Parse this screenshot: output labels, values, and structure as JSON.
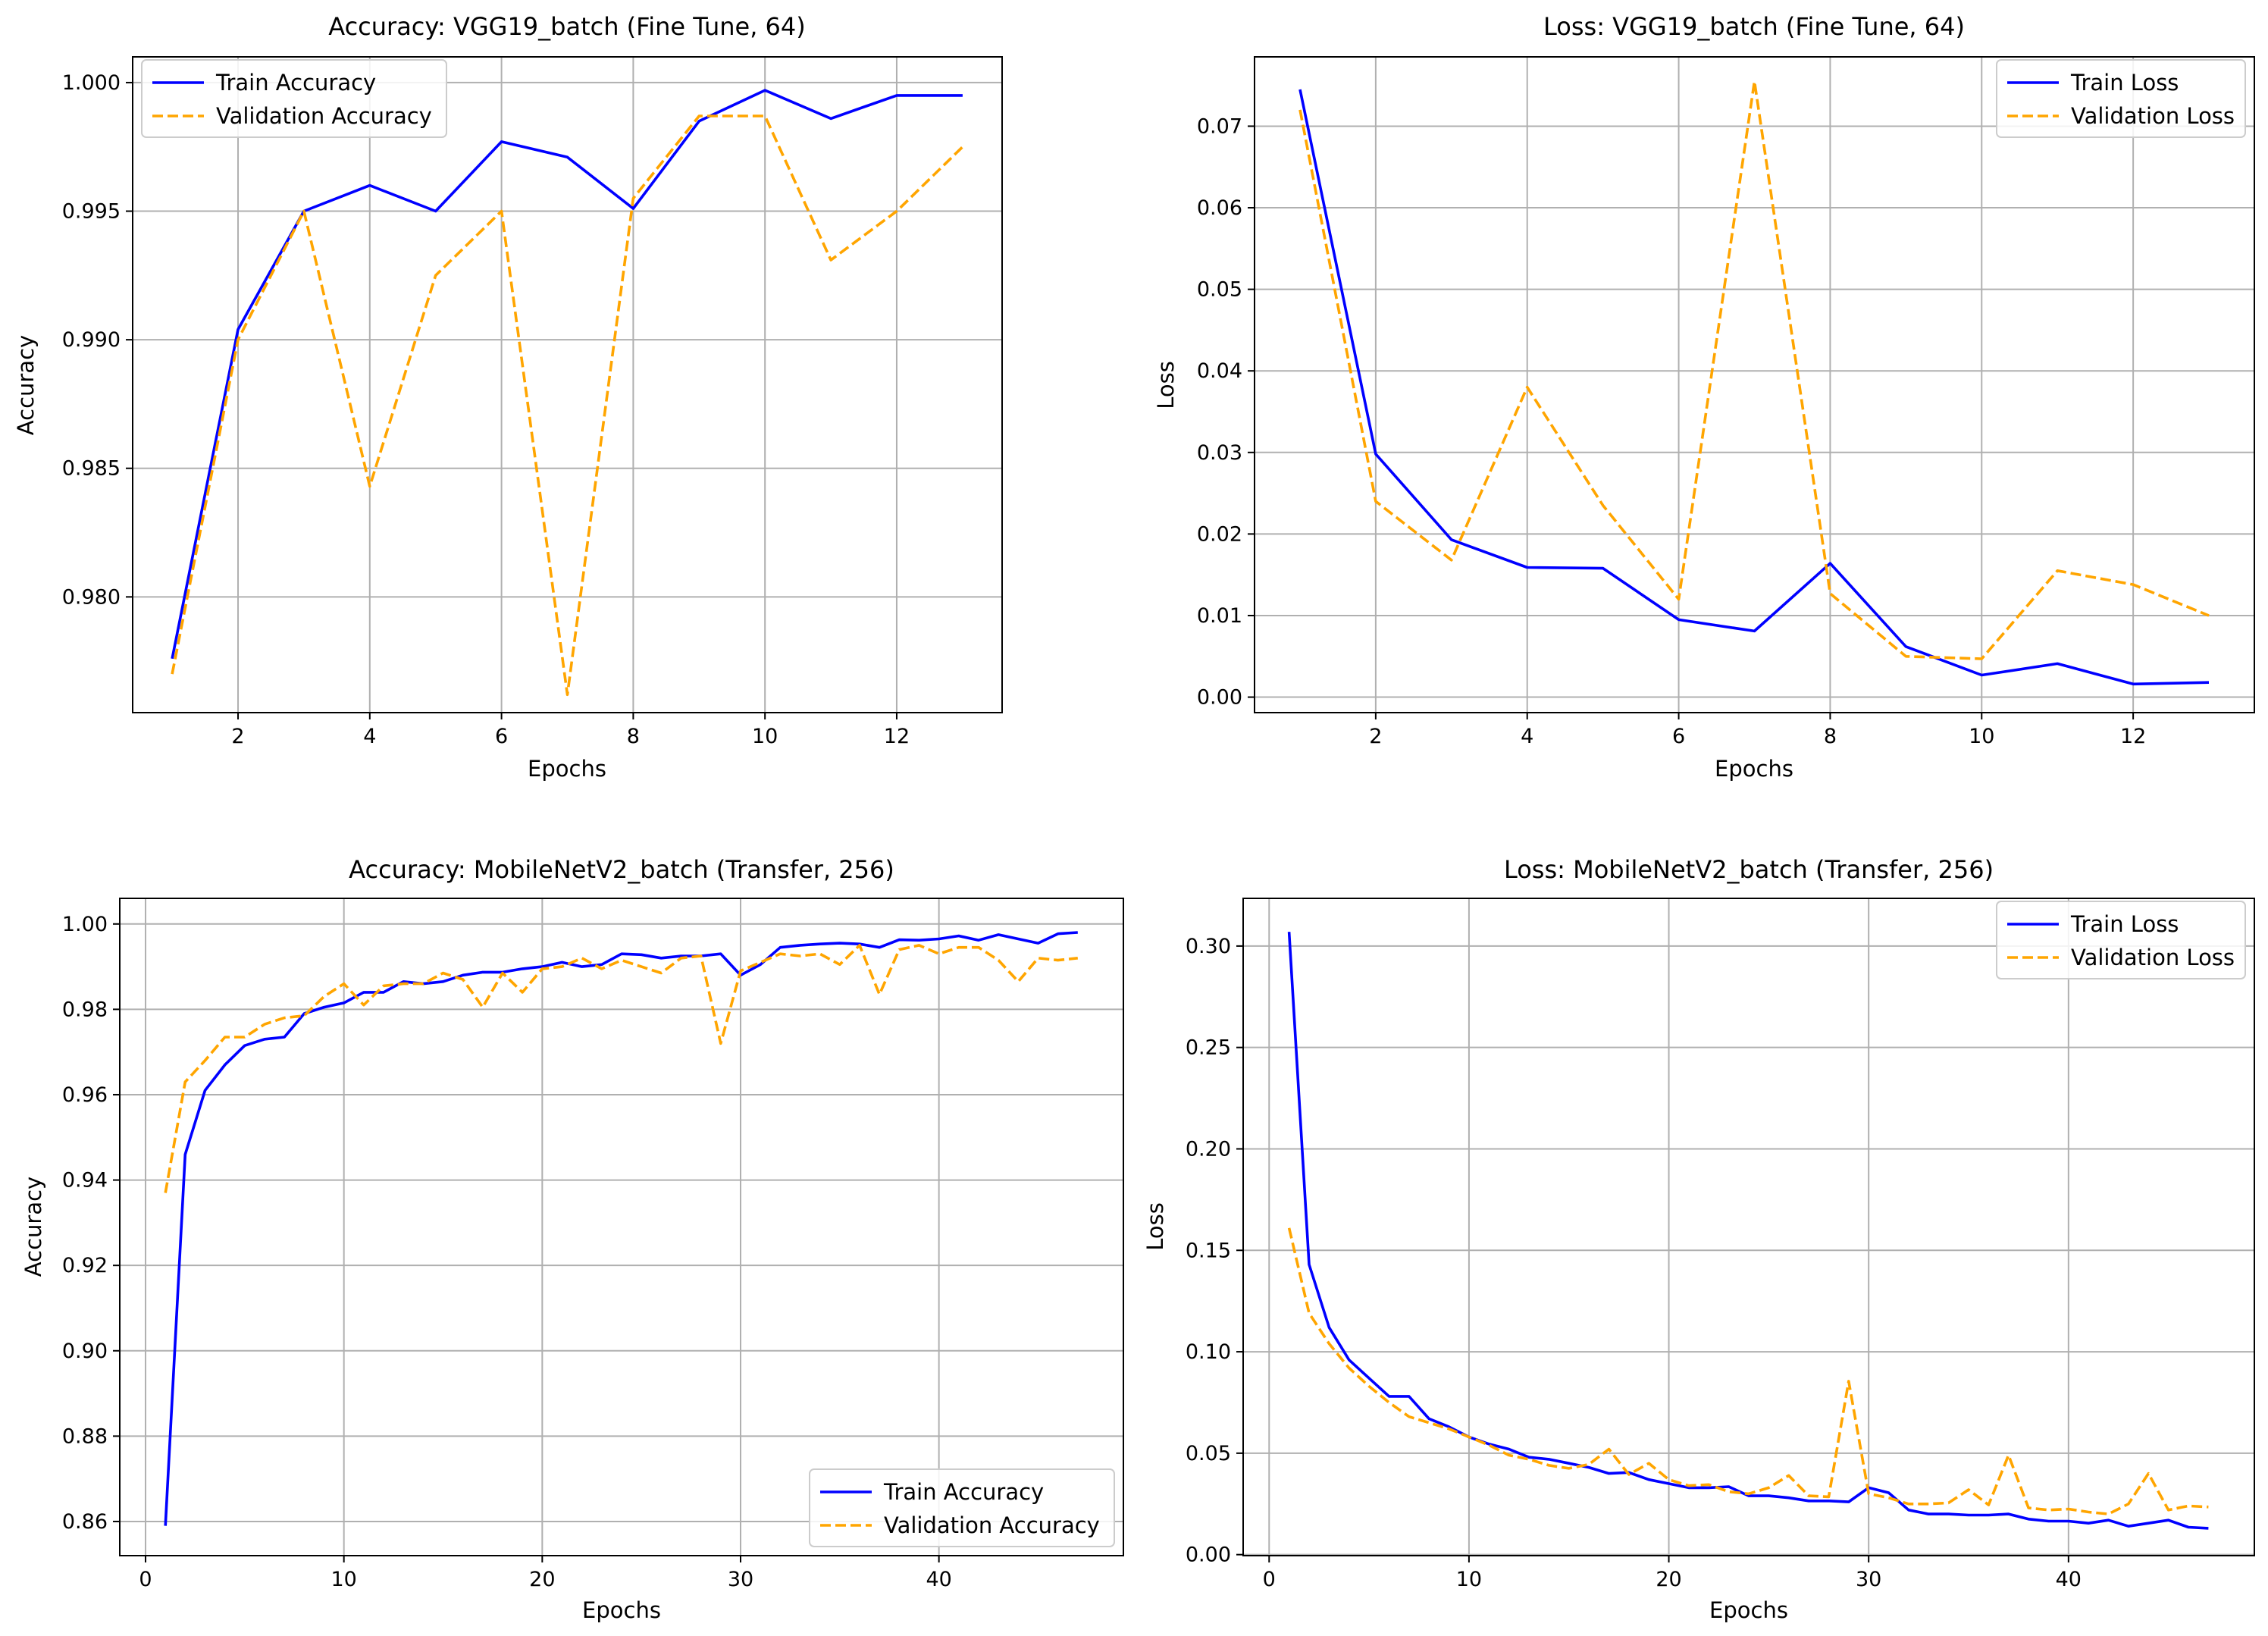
{
  "chart_data": [
    {
      "type": "line",
      "title": "Accuracy: VGG19_batch (Fine Tune, 64)",
      "xlabel": "Epochs",
      "ylabel": "Accuracy",
      "xlim": [
        0.4,
        13.6
      ],
      "ylim": [
        0.9755,
        1.001
      ],
      "xticks": [
        2,
        4,
        6,
        8,
        10,
        12
      ],
      "xtick_labels": [
        "2",
        "4",
        "6",
        "8",
        "10",
        "12"
      ],
      "yticks": [
        0.98,
        0.985,
        0.99,
        0.995,
        1.0
      ],
      "ytick_labels": [
        "0.980",
        "0.985",
        "0.990",
        "0.995",
        "1.000"
      ],
      "grid": true,
      "legend_loc": "upper-left",
      "x": [
        1,
        2,
        3,
        4,
        5,
        6,
        7,
        8,
        9,
        10,
        11,
        12,
        13
      ],
      "series": [
        {
          "name": "Train Accuracy",
          "color": "#0000ff",
          "style": "solid",
          "values": [
            0.9776,
            0.9904,
            0.995,
            0.996,
            0.995,
            0.9977,
            0.9971,
            0.9951,
            0.9985,
            0.9997,
            0.9986,
            0.9995,
            0.9995
          ]
        },
        {
          "name": "Validation Accuracy",
          "color": "#ffa500",
          "style": "dashed",
          "values": [
            0.977,
            0.99,
            0.995,
            0.9843,
            0.9925,
            0.995,
            0.9762,
            0.9955,
            0.9987,
            0.9987,
            0.9931,
            0.995,
            0.9975
          ]
        }
      ]
    },
    {
      "type": "line",
      "title": "Loss: VGG19_batch (Fine Tune, 64)",
      "xlabel": "Epochs",
      "ylabel": "Loss",
      "xlim": [
        0.4,
        13.6
      ],
      "ylim": [
        -0.0019,
        0.0785
      ],
      "xticks": [
        2,
        4,
        6,
        8,
        10,
        12
      ],
      "xtick_labels": [
        "2",
        "4",
        "6",
        "8",
        "10",
        "12"
      ],
      "yticks": [
        0.0,
        0.01,
        0.02,
        0.03,
        0.04,
        0.05,
        0.06,
        0.07
      ],
      "ytick_labels": [
        "0.00",
        "0.01",
        "0.02",
        "0.03",
        "0.04",
        "0.05",
        "0.06",
        "0.07"
      ],
      "grid": true,
      "legend_loc": "upper-right",
      "x": [
        1,
        2,
        3,
        4,
        5,
        6,
        7,
        8,
        9,
        10,
        11,
        12,
        13
      ],
      "series": [
        {
          "name": "Train Loss",
          "color": "#0000ff",
          "style": "solid",
          "values": [
            0.0745,
            0.0298,
            0.0193,
            0.0159,
            0.0158,
            0.0095,
            0.0081,
            0.0164,
            0.0062,
            0.0027,
            0.0041,
            0.0016,
            0.0018
          ]
        },
        {
          "name": "Validation Loss",
          "color": "#ffa500",
          "style": "dashed",
          "values": [
            0.072,
            0.024,
            0.0168,
            0.038,
            0.0235,
            0.012,
            0.0755,
            0.0127,
            0.005,
            0.0047,
            0.0155,
            0.0138,
            0.01
          ]
        }
      ]
    },
    {
      "type": "line",
      "title": "Accuracy: MobileNetV2_batch (Transfer, 256)",
      "xlabel": "Epochs",
      "ylabel": "Accuracy",
      "xlim": [
        -1.3,
        49.3
      ],
      "ylim": [
        0.852,
        1.006
      ],
      "xticks": [
        0,
        10,
        20,
        30,
        40
      ],
      "xtick_labels": [
        "0",
        "10",
        "20",
        "30",
        "40"
      ],
      "yticks": [
        0.86,
        0.88,
        0.9,
        0.92,
        0.94,
        0.96,
        0.98,
        1.0
      ],
      "ytick_labels": [
        "0.86",
        "0.88",
        "0.90",
        "0.92",
        "0.94",
        "0.96",
        "0.98",
        "1.00"
      ],
      "grid": true,
      "legend_loc": "lower-right",
      "x": [
        1,
        2,
        3,
        4,
        5,
        6,
        7,
        8,
        9,
        10,
        11,
        12,
        13,
        14,
        15,
        16,
        17,
        18,
        19,
        20,
        21,
        22,
        23,
        24,
        25,
        26,
        27,
        28,
        29,
        30,
        31,
        32,
        33,
        34,
        35,
        36,
        37,
        38,
        39,
        40,
        41,
        42,
        43,
        44,
        45,
        46,
        47
      ],
      "series": [
        {
          "name": "Train Accuracy",
          "color": "#0000ff",
          "style": "solid",
          "values": [
            0.859,
            0.946,
            0.961,
            0.967,
            0.9715,
            0.973,
            0.9735,
            0.979,
            0.9805,
            0.9815,
            0.984,
            0.984,
            0.9865,
            0.986,
            0.9865,
            0.988,
            0.9887,
            0.9887,
            0.9895,
            0.99,
            0.991,
            0.99,
            0.9905,
            0.993,
            0.9928,
            0.992,
            0.9925,
            0.9925,
            0.993,
            0.988,
            0.9905,
            0.9945,
            0.995,
            0.9953,
            0.9955,
            0.9953,
            0.9945,
            0.9963,
            0.9962,
            0.9965,
            0.9972,
            0.9962,
            0.9975,
            0.9965,
            0.9955,
            0.9977,
            0.998
          ]
        },
        {
          "name": "Validation Accuracy",
          "color": "#ffa500",
          "style": "dashed",
          "values": [
            0.937,
            0.963,
            0.968,
            0.9735,
            0.9735,
            0.9765,
            0.978,
            0.9785,
            0.983,
            0.986,
            0.981,
            0.9855,
            0.986,
            0.986,
            0.9885,
            0.987,
            0.9805,
            0.9885,
            0.984,
            0.9895,
            0.99,
            0.992,
            0.9895,
            0.9915,
            0.99,
            0.9885,
            0.992,
            0.9925,
            0.972,
            0.989,
            0.991,
            0.993,
            0.9925,
            0.993,
            0.9905,
            0.995,
            0.9835,
            0.994,
            0.995,
            0.993,
            0.9945,
            0.9945,
            0.9915,
            0.9865,
            0.992,
            0.9915,
            0.992
          ]
        }
      ]
    },
    {
      "type": "line",
      "title": "Loss: MobileNetV2_batch (Transfer, 256)",
      "xlabel": "Epochs",
      "ylabel": "Loss",
      "xlim": [
        -1.3,
        49.3
      ],
      "ylim": [
        -0.0005,
        0.3235
      ],
      "xticks": [
        0,
        10,
        20,
        30,
        40
      ],
      "xtick_labels": [
        "0",
        "10",
        "20",
        "30",
        "40"
      ],
      "yticks": [
        0.0,
        0.05,
        0.1,
        0.15,
        0.2,
        0.25,
        0.3
      ],
      "ytick_labels": [
        "0.00",
        "0.05",
        "0.10",
        "0.15",
        "0.20",
        "0.25",
        "0.30"
      ],
      "grid": true,
      "legend_loc": "upper-right",
      "x": [
        1,
        2,
        3,
        4,
        5,
        6,
        7,
        8,
        9,
        10,
        11,
        12,
        13,
        14,
        15,
        16,
        17,
        18,
        19,
        20,
        21,
        22,
        23,
        24,
        25,
        26,
        27,
        28,
        29,
        30,
        31,
        32,
        33,
        34,
        35,
        36,
        37,
        38,
        39,
        40,
        41,
        42,
        43,
        44,
        45,
        46,
        47
      ],
      "series": [
        {
          "name": "Train Loss",
          "color": "#0000ff",
          "style": "solid",
          "values": [
            0.307,
            0.143,
            0.112,
            0.096,
            0.087,
            0.078,
            0.078,
            0.067,
            0.063,
            0.058,
            0.0545,
            0.052,
            0.048,
            0.047,
            0.045,
            0.043,
            0.04,
            0.0405,
            0.037,
            0.035,
            0.033,
            0.033,
            0.0335,
            0.029,
            0.029,
            0.028,
            0.0265,
            0.0265,
            0.026,
            0.033,
            0.0305,
            0.022,
            0.02,
            0.02,
            0.0195,
            0.0195,
            0.02,
            0.0175,
            0.0165,
            0.0165,
            0.0155,
            0.017,
            0.014,
            0.0155,
            0.017,
            0.0135,
            0.013
          ]
        },
        {
          "name": "Validation Loss",
          "color": "#ffa500",
          "style": "dashed",
          "values": [
            0.161,
            0.119,
            0.104,
            0.092,
            0.083,
            0.075,
            0.068,
            0.065,
            0.062,
            0.058,
            0.054,
            0.049,
            0.047,
            0.044,
            0.0425,
            0.0445,
            0.052,
            0.0395,
            0.045,
            0.037,
            0.034,
            0.0345,
            0.031,
            0.03,
            0.033,
            0.039,
            0.029,
            0.0285,
            0.0855,
            0.03,
            0.028,
            0.025,
            0.025,
            0.0255,
            0.032,
            0.0245,
            0.049,
            0.023,
            0.022,
            0.0225,
            0.021,
            0.02,
            0.025,
            0.04,
            0.022,
            0.024,
            0.0235
          ]
        }
      ]
    }
  ]
}
